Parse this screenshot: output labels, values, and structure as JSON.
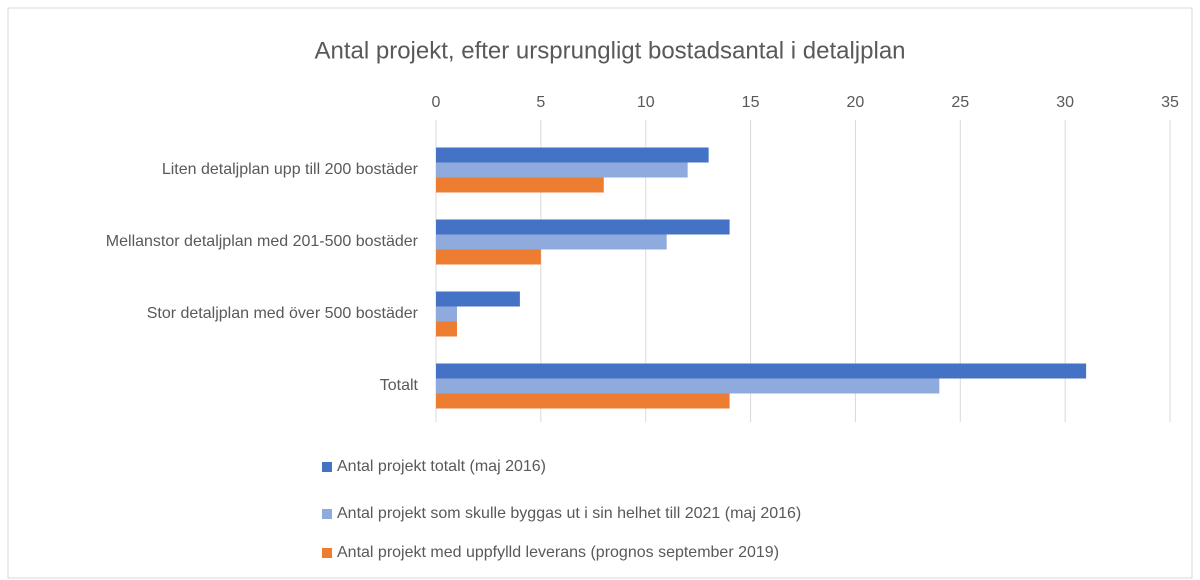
{
  "chart_data": {
    "type": "bar",
    "orientation": "horizontal",
    "title": "Antal projekt, efter ursprungligt bostadsantal i detaljplan",
    "categories": [
      "Liten detaljplan upp till 200 bostäder",
      "Mellanstor detaljplan med 201-500 bostäder",
      "Stor detaljplan med över 500 bostäder",
      "Totalt"
    ],
    "series": [
      {
        "name": "Antal projekt totalt (maj 2016)",
        "color": "#4472c4",
        "values": [
          13,
          14,
          4,
          31
        ]
      },
      {
        "name": "Antal projekt som skulle byggas ut i sin helhet till 2021 (maj 2016)",
        "color": "#8faadc",
        "values": [
          12,
          11,
          1,
          24
        ]
      },
      {
        "name": "Antal projekt med uppfylld leverans (prognos september 2019)",
        "color": "#ed7d31",
        "values": [
          8,
          5,
          1,
          14
        ]
      }
    ],
    "xlim": [
      0,
      35
    ],
    "xticks": [
      0,
      5,
      10,
      15,
      20,
      25,
      30,
      35
    ],
    "grid": true
  }
}
